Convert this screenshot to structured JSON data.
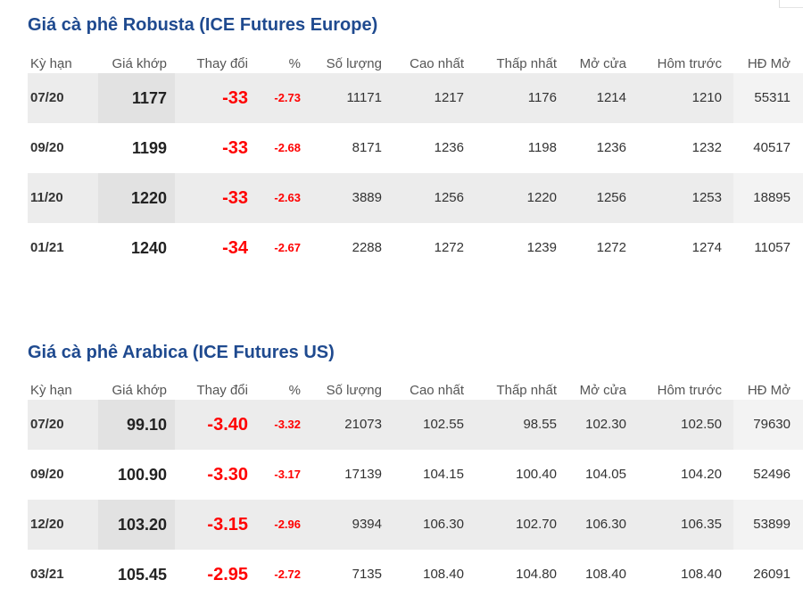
{
  "columns": [
    "Kỳ hạn",
    "Giá khớp",
    "Thay đổi",
    "%",
    "Số lượng",
    "Cao nhất",
    "Thấp nhất",
    "Mở cửa",
    "Hôm trước",
    "HĐ Mở"
  ],
  "colors": {
    "title": "#1f4a8f",
    "down": "#ff0000",
    "stripe": "#ececec"
  },
  "robusta": {
    "title": "Giá cà phê Robusta (ICE Futures Europe)",
    "rows": [
      {
        "term": "07/20",
        "match": "1177",
        "change": "-33",
        "pct": "-2.73",
        "volume": "11171",
        "high": "1217",
        "low": "1176",
        "open": "1214",
        "prev": "1210",
        "oi": "55311"
      },
      {
        "term": "09/20",
        "match": "1199",
        "change": "-33",
        "pct": "-2.68",
        "volume": "8171",
        "high": "1236",
        "low": "1198",
        "open": "1236",
        "prev": "1232",
        "oi": "40517"
      },
      {
        "term": "11/20",
        "match": "1220",
        "change": "-33",
        "pct": "-2.63",
        "volume": "3889",
        "high": "1256",
        "low": "1220",
        "open": "1256",
        "prev": "1253",
        "oi": "18895"
      },
      {
        "term": "01/21",
        "match": "1240",
        "change": "-34",
        "pct": "-2.67",
        "volume": "2288",
        "high": "1272",
        "low": "1239",
        "open": "1272",
        "prev": "1274",
        "oi": "11057"
      }
    ]
  },
  "arabica": {
    "title": "Giá cà phê Arabica (ICE Futures US)",
    "rows": [
      {
        "term": "07/20",
        "match": "99.10",
        "change": "-3.40",
        "pct": "-3.32",
        "volume": "21073",
        "high": "102.55",
        "low": "98.55",
        "open": "102.30",
        "prev": "102.50",
        "oi": "79630"
      },
      {
        "term": "09/20",
        "match": "100.90",
        "change": "-3.30",
        "pct": "-3.17",
        "volume": "17139",
        "high": "104.15",
        "low": "100.40",
        "open": "104.05",
        "prev": "104.20",
        "oi": "52496"
      },
      {
        "term": "12/20",
        "match": "103.20",
        "change": "-3.15",
        "pct": "-2.96",
        "volume": "9394",
        "high": "106.30",
        "low": "102.70",
        "open": "106.30",
        "prev": "106.35",
        "oi": "53899"
      },
      {
        "term": "03/21",
        "match": "105.45",
        "change": "-2.95",
        "pct": "-2.72",
        "volume": "7135",
        "high": "108.40",
        "low": "104.80",
        "open": "108.40",
        "prev": "108.40",
        "oi": "26091"
      }
    ]
  }
}
